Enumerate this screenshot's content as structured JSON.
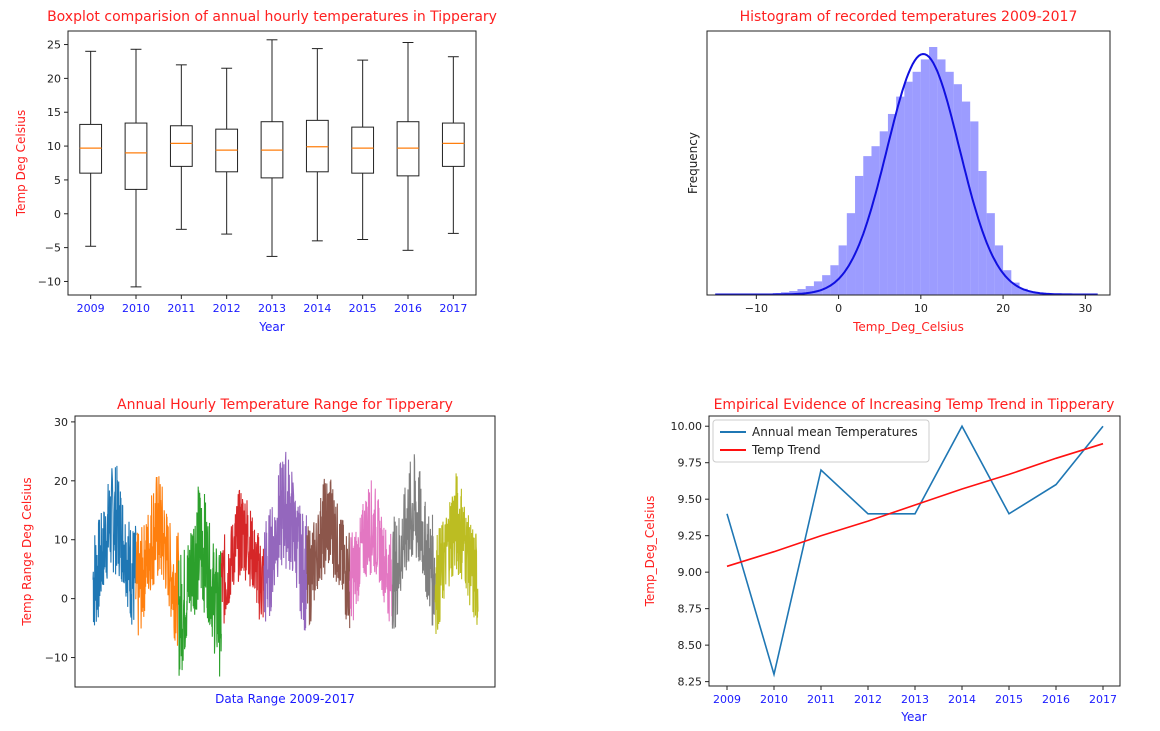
{
  "chart_data": [
    {
      "type": "boxplot",
      "title": "Boxplot comparision of annual hourly temperatures in Tipperary",
      "xlabel": "Year",
      "ylabel": "Temp Deg Celsius",
      "ylim": [
        -12,
        27
      ],
      "yticks": [
        25,
        20,
        15,
        10,
        5,
        0,
        -5,
        -10
      ],
      "categories": [
        "2009",
        "2010",
        "2011",
        "2012",
        "2013",
        "2014",
        "2015",
        "2016",
        "2017"
      ],
      "boxes": [
        {
          "whislo": -4.8,
          "q1": 6.0,
          "med": 9.7,
          "q3": 13.2,
          "whishi": 24.0
        },
        {
          "whislo": -10.8,
          "q1": 3.6,
          "med": 9.0,
          "q3": 13.4,
          "whishi": 24.3
        },
        {
          "whislo": -2.3,
          "q1": 7.0,
          "med": 10.4,
          "q3": 13.0,
          "whishi": 22.0
        },
        {
          "whislo": -3.0,
          "q1": 6.2,
          "med": 9.4,
          "q3": 12.5,
          "whishi": 21.5
        },
        {
          "whislo": -6.3,
          "q1": 5.3,
          "med": 9.4,
          "q3": 13.6,
          "whishi": 25.7
        },
        {
          "whislo": -4.0,
          "q1": 6.2,
          "med": 9.9,
          "q3": 13.8,
          "whishi": 24.4
        },
        {
          "whislo": -3.8,
          "q1": 6.0,
          "med": 9.7,
          "q3": 12.8,
          "whishi": 22.7
        },
        {
          "whislo": -5.4,
          "q1": 5.6,
          "med": 9.7,
          "q3": 13.6,
          "whishi": 25.3
        },
        {
          "whislo": -2.9,
          "q1": 7.0,
          "med": 10.4,
          "q3": 13.4,
          "whishi": 23.2
        }
      ],
      "box_color": "#222222",
      "median_color": "#ff7f0e"
    },
    {
      "type": "histogram",
      "title": "Histogram of recorded temperatures 2009-2017",
      "xlabel": "Temp_Deg_Celsius",
      "ylabel": "Frequency",
      "xlim": [
        -16,
        33
      ],
      "xticks": [
        -10,
        0,
        10,
        20,
        30
      ],
      "bin_width": 1,
      "bin_start": -15,
      "bin_heights": [
        0.001,
        0.001,
        0.002,
        0.002,
        0.003,
        0.004,
        0.006,
        0.008,
        0.011,
        0.016,
        0.024,
        0.036,
        0.055,
        0.08,
        0.12,
        0.2,
        0.33,
        0.48,
        0.56,
        0.6,
        0.66,
        0.73,
        0.8,
        0.86,
        0.9,
        0.95,
        1.0,
        0.95,
        0.9,
        0.85,
        0.78,
        0.7,
        0.5,
        0.33,
        0.2,
        0.1,
        0.05,
        0.025,
        0.012,
        0.006,
        0.003,
        0.002,
        0.001,
        0.001,
        0.001,
        0.001
      ],
      "kde_mean": 10.3,
      "kde_sd": 4.4,
      "bar_color": "#7b7bff",
      "kde_color": "#1010e0"
    },
    {
      "type": "line",
      "title": "Annual Hourly Temperature Range for Tipperary",
      "xlabel": "Data Range 2009-2017",
      "ylabel": "Temp Range Deg Celsius",
      "ylim": [
        -15,
        31
      ],
      "yticks": [
        30,
        20,
        10,
        0,
        -10
      ],
      "series": [
        {
          "color": "#1f77b4",
          "min": -6,
          "max": 26
        },
        {
          "color": "#ff7f0e",
          "min": -8,
          "max": 24.5
        },
        {
          "color": "#2ca02c",
          "min": -13.5,
          "max": 23
        },
        {
          "color": "#d62728",
          "min": -5,
          "max": 22
        },
        {
          "color": "#9467bd",
          "min": -6,
          "max": 28.5
        },
        {
          "color": "#8c564b",
          "min": -5,
          "max": 24.5
        },
        {
          "color": "#e377c2",
          "min": -4.5,
          "max": 23
        },
        {
          "color": "#7f7f7f",
          "min": -5.5,
          "max": 27.5
        },
        {
          "color": "#bcbd22",
          "min": -6,
          "max": 24.5
        }
      ]
    },
    {
      "type": "line",
      "title": "Empirical Evidence of Increasing Temp Trend in Tipperary",
      "xlabel": "Year",
      "ylabel": "Temp_Deg_Celsius",
      "ylim": [
        8.22,
        10.07
      ],
      "yticks": [
        10.0,
        9.75,
        9.5,
        9.25,
        9.0,
        8.75,
        8.5,
        8.25
      ],
      "x": [
        "2009",
        "2010",
        "2011",
        "2012",
        "2013",
        "2014",
        "2015",
        "2016",
        "2017"
      ],
      "series": [
        {
          "name": "Annual mean Temperatures",
          "color": "#1f77b4",
          "values": [
            9.4,
            8.3,
            9.7,
            9.4,
            9.4,
            10.0,
            9.4,
            9.6,
            10.0
          ]
        },
        {
          "name": "Temp Trend",
          "color": "#ff1010",
          "values": [
            9.04,
            9.14,
            9.25,
            9.35,
            9.46,
            9.57,
            9.67,
            9.78,
            9.88
          ]
        }
      ],
      "legend": "top-left"
    }
  ]
}
